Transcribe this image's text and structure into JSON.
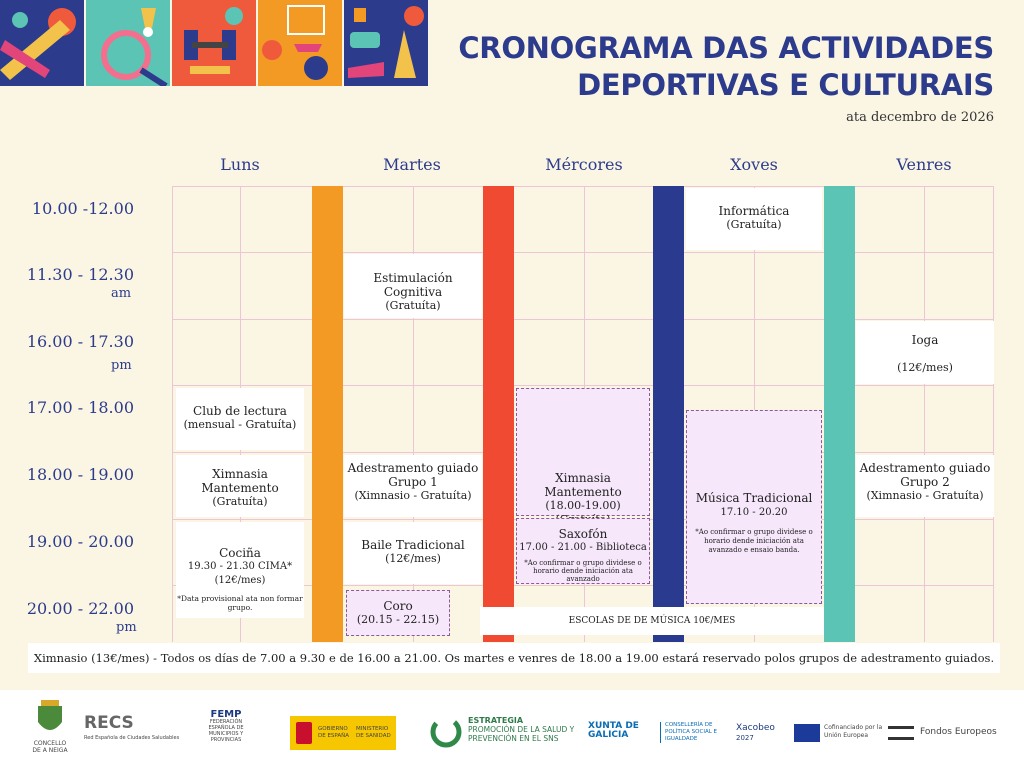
{
  "header": {
    "title_line1": "CRONOGRAMA DAS ACTIVIDADES",
    "title_line2": "DEPORTIVAS E CULTURAIS",
    "subtitle": "ata decembro de 2026"
  },
  "days": [
    "Luns",
    "Martes",
    "Mércores",
    "Xoves",
    "Venres"
  ],
  "times": [
    {
      "label": "10.00 -12.00",
      "suffix": ""
    },
    {
      "label": "11.30 - 12.30",
      "suffix": "am"
    },
    {
      "label": "16.00 - 17.30",
      "suffix": "pm"
    },
    {
      "label": "17.00 - 18.00",
      "suffix": ""
    },
    {
      "label": "18.00 - 19.00",
      "suffix": ""
    },
    {
      "label": "19.00 - 20.00",
      "suffix": ""
    },
    {
      "label": "20.00 - 22.00",
      "suffix": "pm"
    }
  ],
  "activities": {
    "informatica": {
      "name": "Informática",
      "detail": "(Gratuíta)"
    },
    "estimulacion": {
      "name": "Estimulación Cognitiva",
      "detail": "(Gratuíta)"
    },
    "ioga": {
      "name": "Ioga",
      "detail": "(12€/mes)"
    },
    "club": {
      "name": "Club de lectura",
      "detail": "(mensual - Gratuíta)"
    },
    "ximnasia_luns": {
      "name": "Ximnasia Mantemento",
      "detail": "(Gratuíta)"
    },
    "adestramento1": {
      "name": "Adestramento guiado",
      "group": "Grupo 1",
      "detail": "(Ximnasio - Gratuíta)"
    },
    "ximnasia_merc": {
      "name": "Ximnasia Mantemento",
      "detail": "(18.00-19.00) (Gratuíta)"
    },
    "musica": {
      "name": "Música Tradicional",
      "detail": "17.10 - 20.20",
      "note": "*Ao confirmar o grupo dividese o horario dende iniciación ata avanzado e ensaio banda."
    },
    "adestramento2": {
      "name": "Adestramento guiado",
      "group": "Grupo 2",
      "detail": "(Ximnasio - Gratuíta)"
    },
    "cocina": {
      "name": "Cociña",
      "detail": "19.30 - 21.30 CIMA*",
      "price": "(12€/mes)",
      "note": "*Data provisional ata non formar grupo."
    },
    "baile": {
      "name": "Baile Tradicional",
      "detail": "(12€/mes)"
    },
    "saxofon": {
      "name": "Saxofón",
      "detail": "17.00 - 21.00 - Biblioteca",
      "note": "*Ao confirmar o grupo dividese o horario dende iniciación ata avanzado"
    },
    "coro": {
      "name": "Coro",
      "detail": "(20.15 - 22.15)"
    },
    "escolas": {
      "name": "ESCOLAS DE DE MÚSICA 10€/MES"
    }
  },
  "footer_note": "Ximnasio (13€/mes) - Todos os días de 7.00 a 9.30 e de 16.00 a 21.00. Os martes e venres de 18.00 a 19.00 estará reservado polos grupos de adestramento guiados.",
  "logos": {
    "concello": "CONCELLO DE A NEIGA",
    "recs": "RECS",
    "recs_sub": "Red Española de Ciudades Saludables",
    "femp": "FEMP",
    "femp_sub": "FEDERACIÓN ESPAÑOLA DE MUNICIPIOS Y PROVINCIAS",
    "gobierno": "GOBIERNO DE ESPAÑA",
    "ministerio": "MINISTERIO DE SANIDAD",
    "estrategia": "ESTRATEGIA",
    "estrategia_sub": "PROMOCIÓN DE LA SALUD Y PREVENCIÓN EN EL SNS",
    "xunta": "XUNTA DE GALICIA",
    "xunta_sub": "CONSELLERÍA DE POLÍTICA SOCIAL E IGUALDADE",
    "xacobeo": "Xacobeo",
    "xacobeo_year": "2027",
    "ue": "Cofinanciado por la Unión Europea",
    "fondos": "Fondos Europeos"
  },
  "colors": {
    "title": "#2c3b8c",
    "orange": "#f39a25",
    "red": "#f04b32",
    "navy": "#2a3a8f",
    "teal": "#5cc4b4",
    "lavender": "#f6e7fb"
  }
}
